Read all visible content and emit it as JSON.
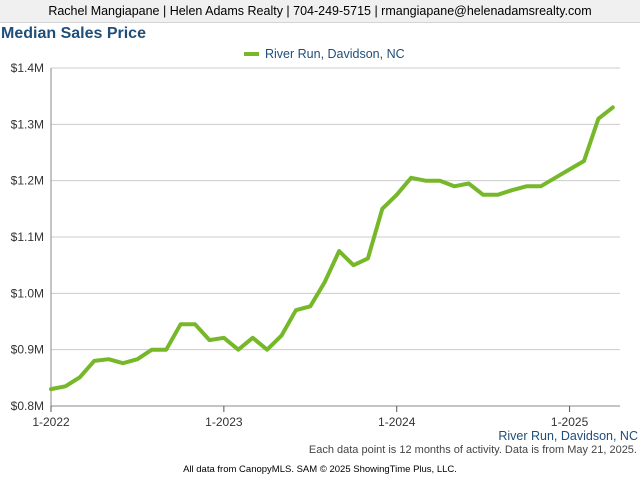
{
  "header": {
    "contact_line": "Rachel Mangiapane | Helen Adams Realty | 704-249-5715 | rmangiapane@helenadamsrealty.com"
  },
  "footnote": "Each data point is 12 months of activity. Data is from May 21, 2025.",
  "credit": "All data from CanopyMLS. SAM © 2025 ShowingTime Plus, LLC.",
  "colors": {
    "series": "#76b82a",
    "title": "#1f4e79",
    "grid": "#cccccc",
    "axis": "#888888"
  },
  "chart_data": {
    "type": "line",
    "title": "Median Sales Price",
    "xlabel": "",
    "ylabel": "",
    "legend": "top-center",
    "grid": true,
    "ylim": [
      800000,
      1400000
    ],
    "yticks": [
      800000,
      900000,
      1000000,
      1100000,
      1200000,
      1300000,
      1400000
    ],
    "ytick_labels": [
      "$0.8M",
      "$0.9M",
      "$1.0M",
      "$1.1M",
      "$1.2M",
      "$1.3M",
      "$1.4M"
    ],
    "xtick_labels": [
      "1-2022",
      "1-2023",
      "1-2024",
      "1-2025"
    ],
    "x_label_bottom_right": "River Run, Davidson, NC",
    "x": [
      "2022-01",
      "2022-02",
      "2022-03",
      "2022-04",
      "2022-05",
      "2022-06",
      "2022-07",
      "2022-08",
      "2022-09",
      "2022-10",
      "2022-11",
      "2022-12",
      "2023-01",
      "2023-02",
      "2023-03",
      "2023-04",
      "2023-05",
      "2023-06",
      "2023-07",
      "2023-08",
      "2023-09",
      "2023-10",
      "2023-11",
      "2023-12",
      "2024-01",
      "2024-02",
      "2024-03",
      "2024-04",
      "2024-05",
      "2024-06",
      "2024-07",
      "2024-08",
      "2024-09",
      "2024-10",
      "2024-11",
      "2024-12",
      "2025-01",
      "2025-02",
      "2025-03",
      "2025-04"
    ],
    "series": [
      {
        "name": "River Run, Davidson, NC",
        "values": [
          830000,
          835000,
          851000,
          880000,
          883000,
          876000,
          883000,
          900000,
          900000,
          945000,
          945000,
          917000,
          921000,
          900000,
          921000,
          900000,
          925000,
          970000,
          977000,
          1020000,
          1075000,
          1050000,
          1062000,
          1150000,
          1175000,
          1205000,
          1200000,
          1200000,
          1190000,
          1195000,
          1175000,
          1175000,
          1183000,
          1190000,
          1190000,
          1205000,
          1220000,
          1235000,
          1310000,
          1330000
        ]
      }
    ]
  }
}
